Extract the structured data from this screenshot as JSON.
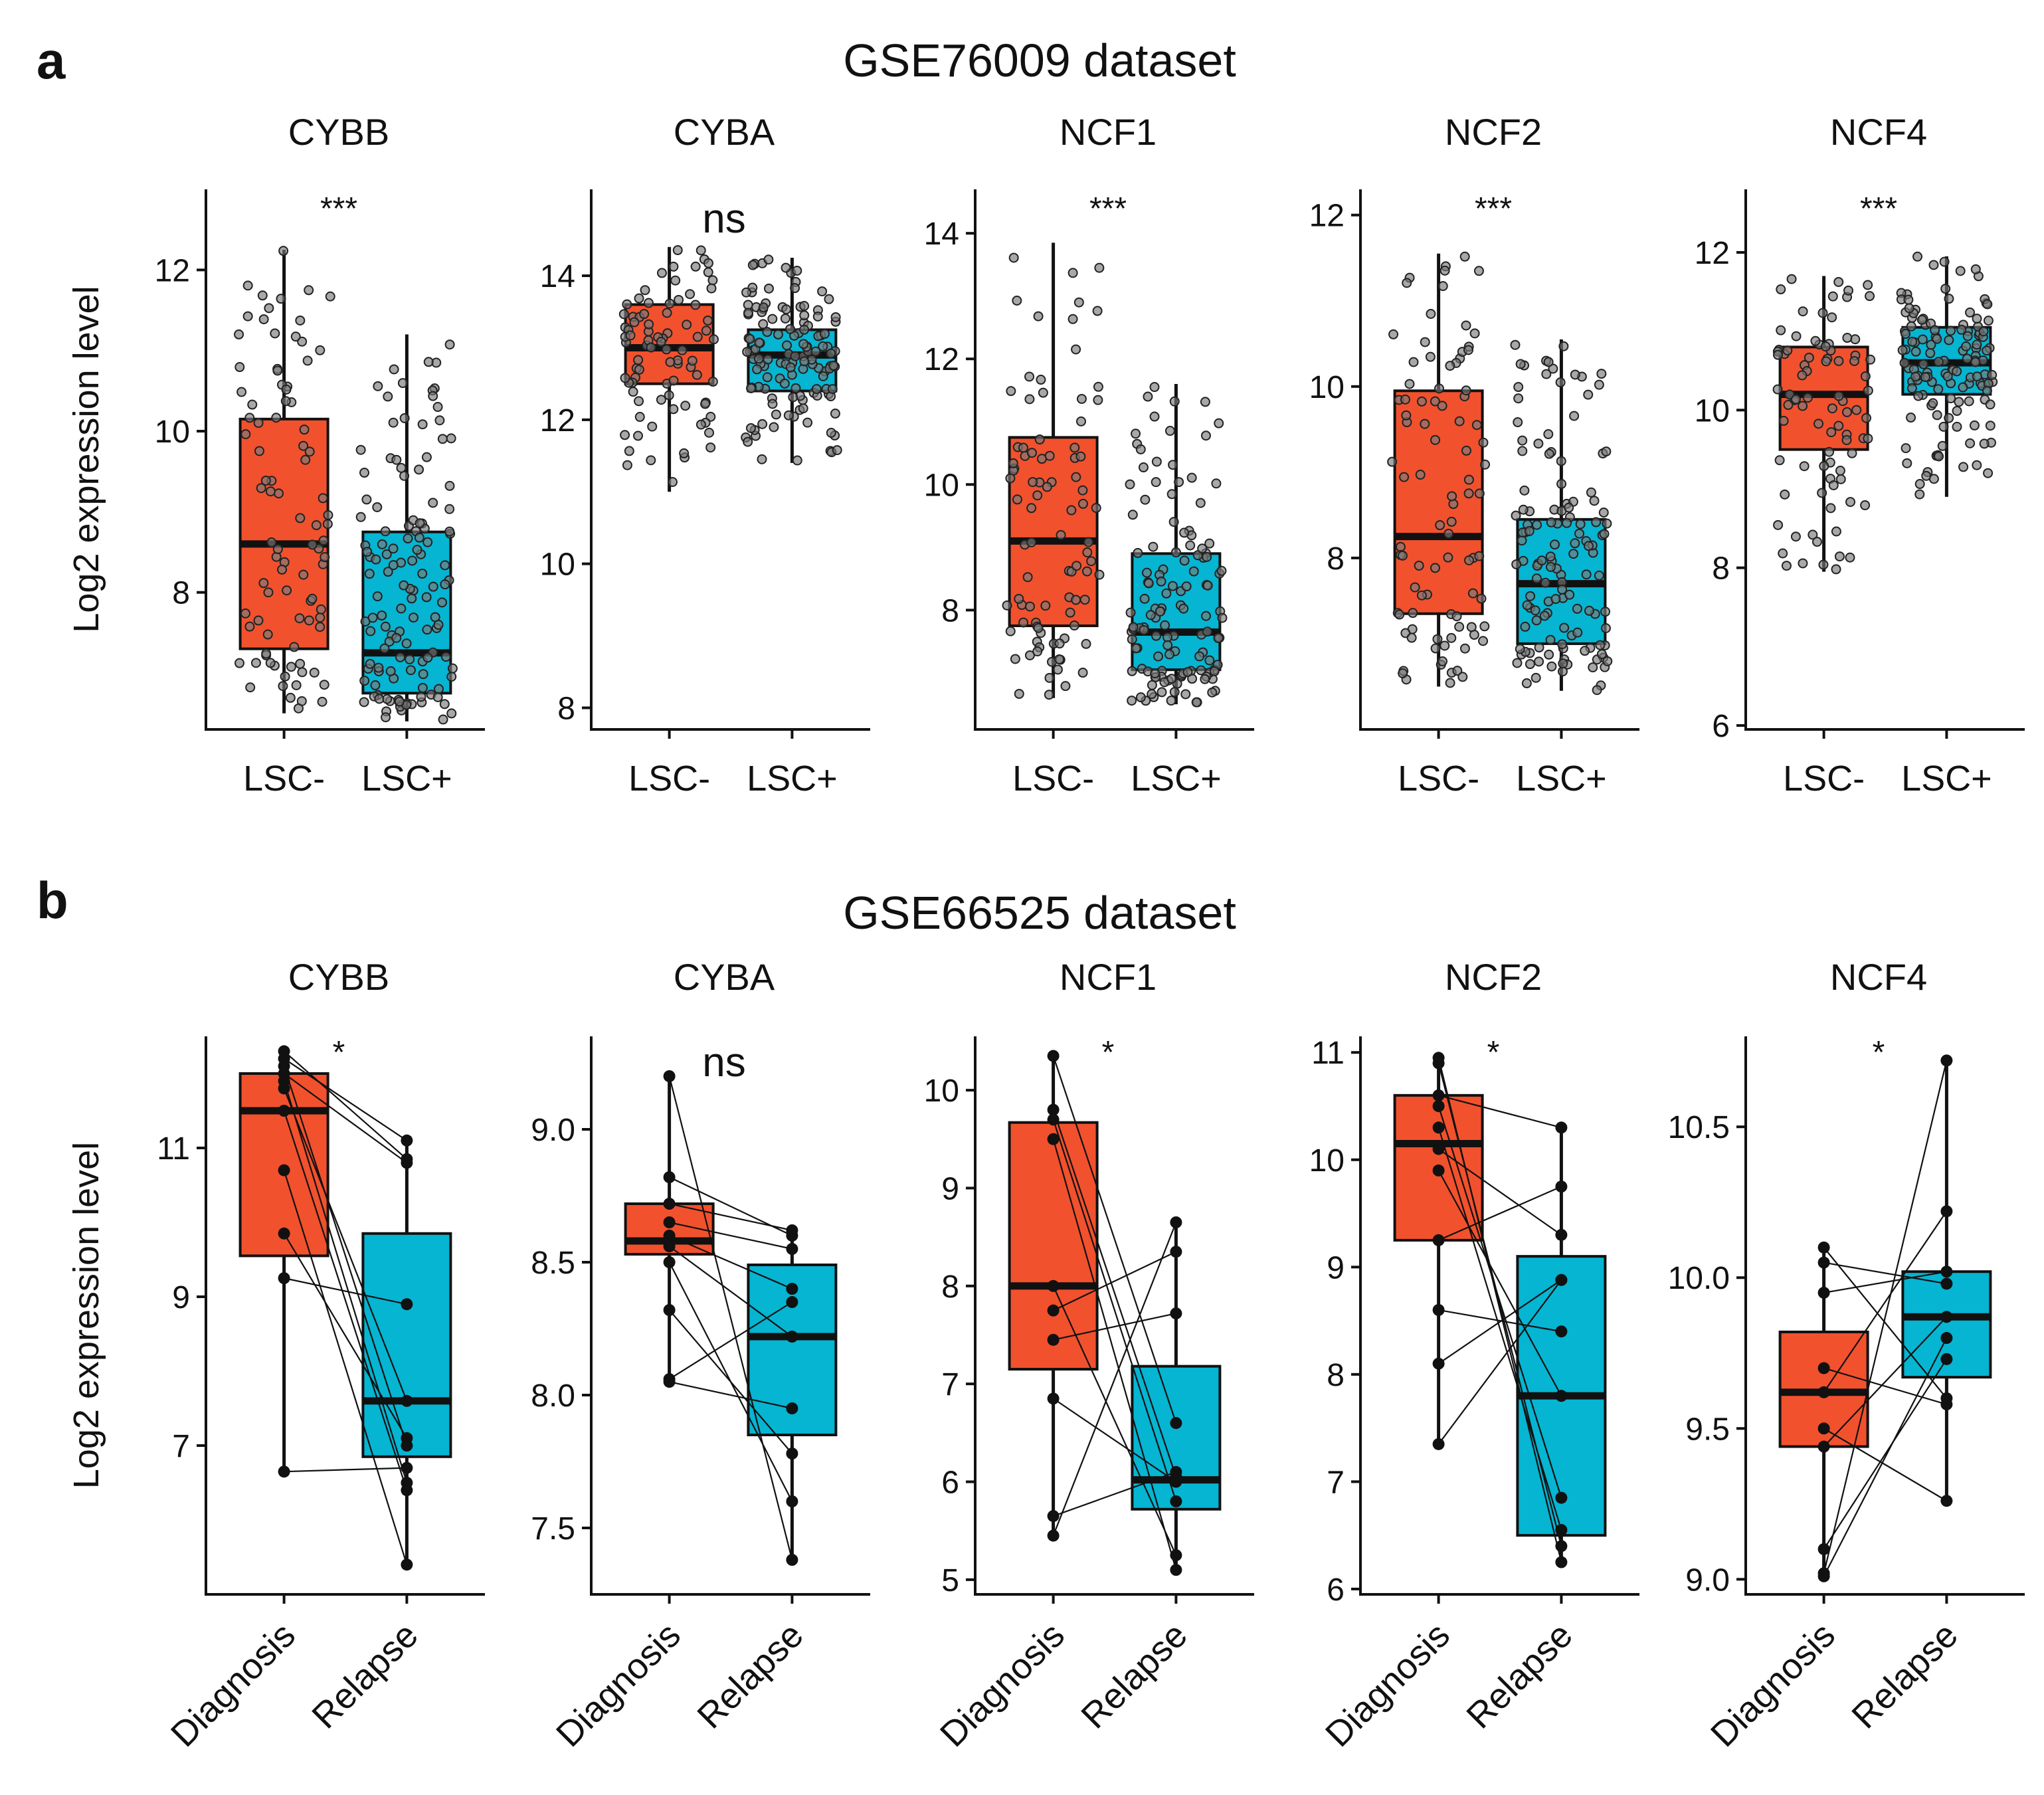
{
  "colors": {
    "group1": "#F2512D",
    "group2": "#05B5D2"
  },
  "panels": [
    {
      "letter": "a",
      "title": "GSE76009 dataset",
      "ylabel": "Log2 expression level",
      "style": "jitter",
      "groups": [
        "LSC-",
        "LSC+"
      ],
      "charts": [
        {
          "gene": "CYBB",
          "sig": "***",
          "ylim": [
            6.3,
            13.0
          ],
          "yticks": [
            8,
            10,
            12
          ],
          "box": [
            {
              "min": 6.5,
              "q1": 7.3,
              "median": 8.6,
              "q3": 10.15,
              "max": 12.25
            },
            {
              "min": 6.4,
              "q1": 6.75,
              "median": 7.25,
              "q3": 8.75,
              "max": 11.2
            }
          ],
          "n": [
            90,
            130
          ]
        },
        {
          "gene": "CYBA",
          "sig": "ns",
          "ylim": [
            7.7,
            15.2
          ],
          "yticks": [
            8,
            10,
            12,
            14
          ],
          "box": [
            {
              "min": 11.0,
              "q1": 12.5,
              "median": 13.0,
              "q3": 13.6,
              "max": 14.4
            },
            {
              "min": 11.4,
              "q1": 12.4,
              "median": 12.9,
              "q3": 13.25,
              "max": 14.25
            }
          ],
          "n": [
            85,
            130
          ]
        },
        {
          "gene": "NCF1",
          "sig": "***",
          "ylim": [
            6.1,
            14.7
          ],
          "yticks": [
            8,
            10,
            12,
            14
          ],
          "box": [
            {
              "min": 6.6,
              "q1": 7.75,
              "median": 9.1,
              "q3": 10.75,
              "max": 13.85
            },
            {
              "min": 6.5,
              "q1": 7.05,
              "median": 7.65,
              "q3": 8.9,
              "max": 11.6
            }
          ],
          "n": [
            90,
            130
          ]
        },
        {
          "gene": "NCF2",
          "sig": "***",
          "ylim": [
            6.0,
            12.3
          ],
          "yticks": [
            8,
            10,
            12
          ],
          "box": [
            {
              "min": 6.5,
              "q1": 7.35,
              "median": 8.25,
              "q3": 9.95,
              "max": 11.55
            },
            {
              "min": 6.45,
              "q1": 7.0,
              "median": 7.7,
              "q3": 8.45,
              "max": 10.55
            }
          ],
          "n": [
            90,
            130
          ]
        },
        {
          "gene": "NCF4",
          "sig": "***",
          "ylim": [
            5.95,
            12.8
          ],
          "yticks": [
            6,
            8,
            10,
            12
          ],
          "box": [
            {
              "min": 7.95,
              "q1": 9.5,
              "median": 10.2,
              "q3": 10.8,
              "max": 11.7
            },
            {
              "min": 8.9,
              "q1": 10.2,
              "median": 10.6,
              "q3": 11.05,
              "max": 11.95
            }
          ],
          "n": [
            85,
            130
          ]
        }
      ]
    },
    {
      "letter": "b",
      "title": "GSE66525 dataset",
      "ylabel": "Log2 expression level",
      "style": "paired",
      "groups": [
        "Diagnosis",
        "Relapse"
      ],
      "charts": [
        {
          "gene": "CYBB",
          "sig": "*",
          "ylim": [
            5.0,
            12.5
          ],
          "yticks": [
            7,
            9,
            11
          ],
          "box": [
            {
              "min": 6.65,
              "q1": 9.55,
              "median": 11.5,
              "q3": 12.0,
              "max": 12.3
            },
            {
              "min": 5.4,
              "q1": 6.85,
              "median": 7.6,
              "q3": 9.85,
              "max": 11.15
            }
          ],
          "pairs": [
            [
              12.3,
              10.85
            ],
            [
              12.2,
              11.1
            ],
            [
              12.0,
              10.8
            ],
            [
              11.8,
              7.6
            ],
            [
              11.5,
              6.4
            ],
            [
              10.7,
              5.4
            ],
            [
              9.85,
              7.1
            ],
            [
              9.25,
              8.9
            ],
            [
              6.65,
              6.7
            ],
            [
              11.9,
              6.5
            ],
            [
              12.1,
              7.0
            ]
          ]
        },
        {
          "gene": "CYBA",
          "sig": "ns",
          "ylim": [
            7.25,
            9.35
          ],
          "yticks": [
            7.5,
            8.0,
            8.5,
            9.0
          ],
          "box": [
            {
              "min": 8.05,
              "q1": 8.53,
              "median": 8.58,
              "q3": 8.72,
              "max": 9.2
            },
            {
              "min": 7.38,
              "q1": 7.85,
              "median": 8.22,
              "q3": 8.49,
              "max": 8.62
            }
          ],
          "pairs": [
            [
              9.2,
              7.38
            ],
            [
              8.82,
              8.6
            ],
            [
              8.72,
              8.62
            ],
            [
              8.65,
              8.55
            ],
            [
              8.6,
              8.4
            ],
            [
              8.56,
              8.22
            ],
            [
              8.5,
              7.6
            ],
            [
              8.32,
              7.78
            ],
            [
              8.05,
              7.95
            ],
            [
              8.06,
              8.35
            ]
          ]
        },
        {
          "gene": "NCF1",
          "sig": "*",
          "ylim": [
            4.85,
            10.55
          ],
          "yticks": [
            5,
            6,
            7,
            8,
            9,
            10
          ],
          "box": [
            {
              "min": 5.45,
              "q1": 7.15,
              "median": 8.0,
              "q3": 9.67,
              "max": 10.35
            },
            {
              "min": 5.1,
              "q1": 5.72,
              "median": 6.02,
              "q3": 7.18,
              "max": 8.65
            }
          ],
          "pairs": [
            [
              10.35,
              6.6
            ],
            [
              9.8,
              6.05
            ],
            [
              9.7,
              5.8
            ],
            [
              9.5,
              5.1
            ],
            [
              8.0,
              5.25
            ],
            [
              7.75,
              8.35
            ],
            [
              7.45,
              7.72
            ],
            [
              6.85,
              6.0
            ],
            [
              5.65,
              6.1
            ],
            [
              5.45,
              8.65
            ]
          ]
        },
        {
          "gene": "NCF2",
          "sig": "*",
          "ylim": [
            5.95,
            11.15
          ],
          "yticks": [
            6,
            7,
            8,
            9,
            10,
            11
          ],
          "box": [
            {
              "min": 7.35,
              "q1": 9.25,
              "median": 10.15,
              "q3": 10.6,
              "max": 10.95
            },
            {
              "min": 6.25,
              "q1": 6.5,
              "median": 7.8,
              "q3": 9.1,
              "max": 10.3
            }
          ],
          "pairs": [
            [
              10.95,
              6.25
            ],
            [
              10.9,
              6.4
            ],
            [
              10.6,
              10.3
            ],
            [
              10.5,
              6.85
            ],
            [
              10.3,
              6.55
            ],
            [
              10.1,
              9.3
            ],
            [
              9.9,
              7.8
            ],
            [
              9.25,
              9.75
            ],
            [
              8.6,
              8.4
            ],
            [
              8.1,
              8.88
            ],
            [
              7.35,
              8.88
            ]
          ]
        },
        {
          "gene": "NCF4",
          "sig": "*",
          "ylim": [
            8.95,
            10.8
          ],
          "yticks": [
            9.0,
            9.5,
            10.0,
            10.5
          ],
          "box": [
            {
              "min": 9.01,
              "q1": 9.44,
              "median": 9.62,
              "q3": 9.82,
              "max": 10.1
            },
            {
              "min": 9.26,
              "q1": 9.67,
              "median": 9.87,
              "q3": 10.02,
              "max": 10.72
            }
          ],
          "pairs": [
            [
              10.1,
              9.6
            ],
            [
              10.05,
              9.98
            ],
            [
              9.95,
              10.02
            ],
            [
              9.7,
              9.58
            ],
            [
              9.62,
              10.22
            ],
            [
              9.5,
              9.26
            ],
            [
              9.44,
              9.87
            ],
            [
              9.1,
              9.73
            ],
            [
              9.02,
              10.72
            ],
            [
              9.01,
              9.8
            ]
          ]
        }
      ]
    }
  ]
}
